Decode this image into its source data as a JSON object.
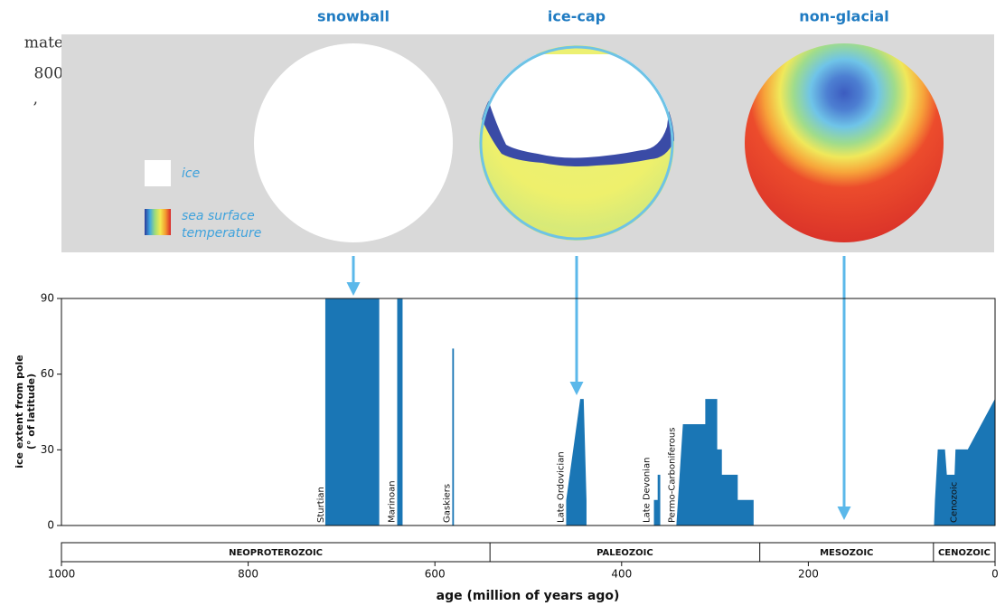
{
  "cropped_text": [
    "mate",
    "800",
    ","
  ],
  "globes": [
    "snowball",
    "ice-cap",
    "non-glacial"
  ],
  "legend": {
    "ice": "ice",
    "sea_surface_temperature": [
      "sea surface",
      "temperature"
    ]
  },
  "chart_data": {
    "type": "area",
    "xlabel": "age (million of years ago)",
    "ylabel": [
      "ice extent from pole",
      "(° of latitude)"
    ],
    "xlim": [
      1000,
      0
    ],
    "ylim": [
      0,
      90
    ],
    "xticks": [
      1000,
      800,
      600,
      400,
      200,
      0
    ],
    "yticks": [
      0,
      30,
      60,
      90
    ],
    "series": [
      {
        "color": "#1a76b5",
        "x": [
          717,
          717,
          660,
          660,
          null,
          640,
          640,
          635,
          635,
          null,
          581,
          581,
          580,
          580,
          null,
          459,
          459,
          444,
          441,
          438,
          438,
          null,
          365,
          365,
          361,
          361,
          359,
          359,
          null,
          341,
          334,
          310,
          310,
          298,
          298,
          293,
          293,
          276,
          276,
          259,
          259,
          null,
          65,
          64,
          61,
          54,
          52,
          43,
          42,
          29,
          0,
          0
        ],
        "values": [
          0,
          90,
          90,
          0,
          null,
          0,
          90,
          90,
          0,
          null,
          0,
          70,
          70,
          0,
          null,
          0,
          10,
          50,
          50,
          10,
          0,
          null,
          0,
          10,
          10,
          20,
          20,
          0,
          null,
          0,
          40,
          40,
          50,
          50,
          30,
          30,
          20,
          20,
          10,
          10,
          0,
          null,
          0,
          10,
          30,
          30,
          20,
          20,
          30,
          30,
          50,
          0
        ]
      }
    ],
    "annotations": [
      {
        "text": "Sturtian",
        "x": 722
      },
      {
        "text": "Marinoan",
        "x": 646
      },
      {
        "text": "Gaskiers",
        "x": 587
      },
      {
        "text": "Late Ordovician",
        "x": 465
      },
      {
        "text": "Late Devonian",
        "x": 373
      },
      {
        "text": "Permo-Carboniferous",
        "x": 346
      },
      {
        "text": "Cenozoic",
        "x": 44
      }
    ],
    "eras": [
      {
        "name": "NEOPROTEROZOIC",
        "start": 1000,
        "end": 541
      },
      {
        "name": "PALEOZOIC",
        "start": 541,
        "end": 252
      },
      {
        "name": "MESOZOIC",
        "start": 252,
        "end": 66
      },
      {
        "name": "CENOZOIC",
        "start": 66,
        "end": 0
      }
    ]
  }
}
